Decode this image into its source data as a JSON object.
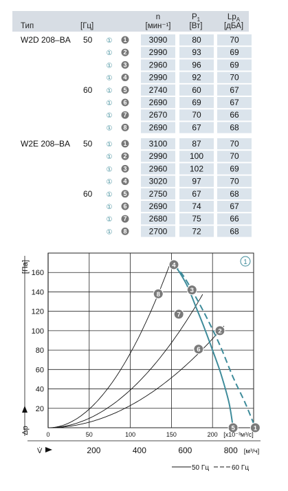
{
  "table": {
    "headers": {
      "type": "Тип",
      "freq": "[Гц]",
      "n_label": "n",
      "n_unit": "[мин⁻¹]",
      "p_label": "P",
      "p_sub": "1",
      "p_unit": "[Вт]",
      "lp_label": "Lp",
      "lp_sub": "A",
      "lp_unit": "[дБА]"
    },
    "models": [
      {
        "name": "W2D 208–BA",
        "rows": [
          {
            "hz": "50",
            "c1": "①",
            "idx": "1",
            "n": "3090",
            "p": "80",
            "lp": "70"
          },
          {
            "hz": "",
            "c1": "①",
            "idx": "2",
            "n": "2990",
            "p": "93",
            "lp": "69"
          },
          {
            "hz": "",
            "c1": "①",
            "idx": "3",
            "n": "2960",
            "p": "96",
            "lp": "69"
          },
          {
            "hz": "",
            "c1": "①",
            "idx": "4",
            "n": "2990",
            "p": "92",
            "lp": "70"
          },
          {
            "hz": "60",
            "c1": "①",
            "idx": "5",
            "n": "2740",
            "p": "60",
            "lp": "67"
          },
          {
            "hz": "",
            "c1": "①",
            "idx": "6",
            "n": "2690",
            "p": "69",
            "lp": "67"
          },
          {
            "hz": "",
            "c1": "①",
            "idx": "7",
            "n": "2670",
            "p": "70",
            "lp": "66"
          },
          {
            "hz": "",
            "c1": "①",
            "idx": "8",
            "n": "2690",
            "p": "67",
            "lp": "68"
          }
        ]
      },
      {
        "name": "W2E 208–BA",
        "rows": [
          {
            "hz": "50",
            "c1": "①",
            "idx": "1",
            "n": "3100",
            "p": "87",
            "lp": "70"
          },
          {
            "hz": "",
            "c1": "①",
            "idx": "2",
            "n": "2990",
            "p": "100",
            "lp": "70"
          },
          {
            "hz": "",
            "c1": "①",
            "idx": "3",
            "n": "2960",
            "p": "102",
            "lp": "69"
          },
          {
            "hz": "",
            "c1": "①",
            "idx": "4",
            "n": "3020",
            "p": "97",
            "lp": "70"
          },
          {
            "hz": "60",
            "c1": "①",
            "idx": "5",
            "n": "2750",
            "p": "67",
            "lp": "68"
          },
          {
            "hz": "",
            "c1": "①",
            "idx": "6",
            "n": "2690",
            "p": "74",
            "lp": "67"
          },
          {
            "hz": "",
            "c1": "①",
            "idx": "7",
            "n": "2680",
            "p": "75",
            "lp": "66"
          },
          {
            "hz": "",
            "c1": "①",
            "idx": "8",
            "n": "2700",
            "p": "72",
            "lp": "68"
          }
        ]
      }
    ]
  },
  "chart_data": {
    "type": "line",
    "ylabel_unit": "[Па]",
    "ylabel_symbol": "Δp",
    "ylim": [
      0,
      180
    ],
    "yticks": [
      20,
      40,
      60,
      80,
      100,
      120,
      140,
      160
    ],
    "xlim_top": [
      0,
      250
    ],
    "xticks_top": [
      0,
      50,
      100,
      150,
      200
    ],
    "xunit_top": "[x10⁻³м³/с]",
    "xlim_bottom": [
      0,
      900
    ],
    "xticks_bottom": [
      200,
      400,
      600,
      800
    ],
    "xunit_bottom": "[м³/ч]",
    "xlabel_bottom_symbol": "V̇",
    "corner_badge": "1",
    "grid": true,
    "points": [
      {
        "id": "1",
        "x": 252,
        "y": 0
      },
      {
        "id": "2",
        "x": 209,
        "y": 100
      },
      {
        "id": "3",
        "x": 175,
        "y": 142
      },
      {
        "id": "4",
        "x": 153,
        "y": 168
      },
      {
        "id": "5",
        "x": 225,
        "y": 0
      },
      {
        "id": "6",
        "x": 183,
        "y": 81
      },
      {
        "id": "7",
        "x": 159,
        "y": 117
      },
      {
        "id": "8",
        "x": 134,
        "y": 138
      }
    ],
    "curve_50": [
      [
        153,
        168
      ],
      [
        160,
        160
      ],
      [
        170,
        145
      ],
      [
        180,
        124
      ],
      [
        190,
        103
      ],
      [
        200,
        80
      ],
      [
        210,
        56
      ],
      [
        220,
        26
      ],
      [
        225,
        0
      ]
    ],
    "curve_60": [
      [
        153,
        168
      ],
      [
        165,
        156
      ],
      [
        180,
        134
      ],
      [
        195,
        110
      ],
      [
        210,
        83
      ],
      [
        225,
        52
      ],
      [
        240,
        25
      ],
      [
        252,
        0
      ]
    ],
    "system_curves": [
      {
        "k": 0.00768,
        "x_end": 148
      },
      {
        "k": 0.00389,
        "x_end": 188
      },
      {
        "k": 0.00229,
        "x_end": 214
      }
    ],
    "legend": [
      {
        "label": "50 Гц",
        "style": "solid"
      },
      {
        "label": "60 Гц",
        "style": "dashed"
      }
    ],
    "colors": {
      "curve": "#3d8b9a",
      "marker": "#7a7a7a",
      "grid": "#222222",
      "row_bg": "#dbe4ec",
      "header_bg": "#d7dde4"
    }
  }
}
